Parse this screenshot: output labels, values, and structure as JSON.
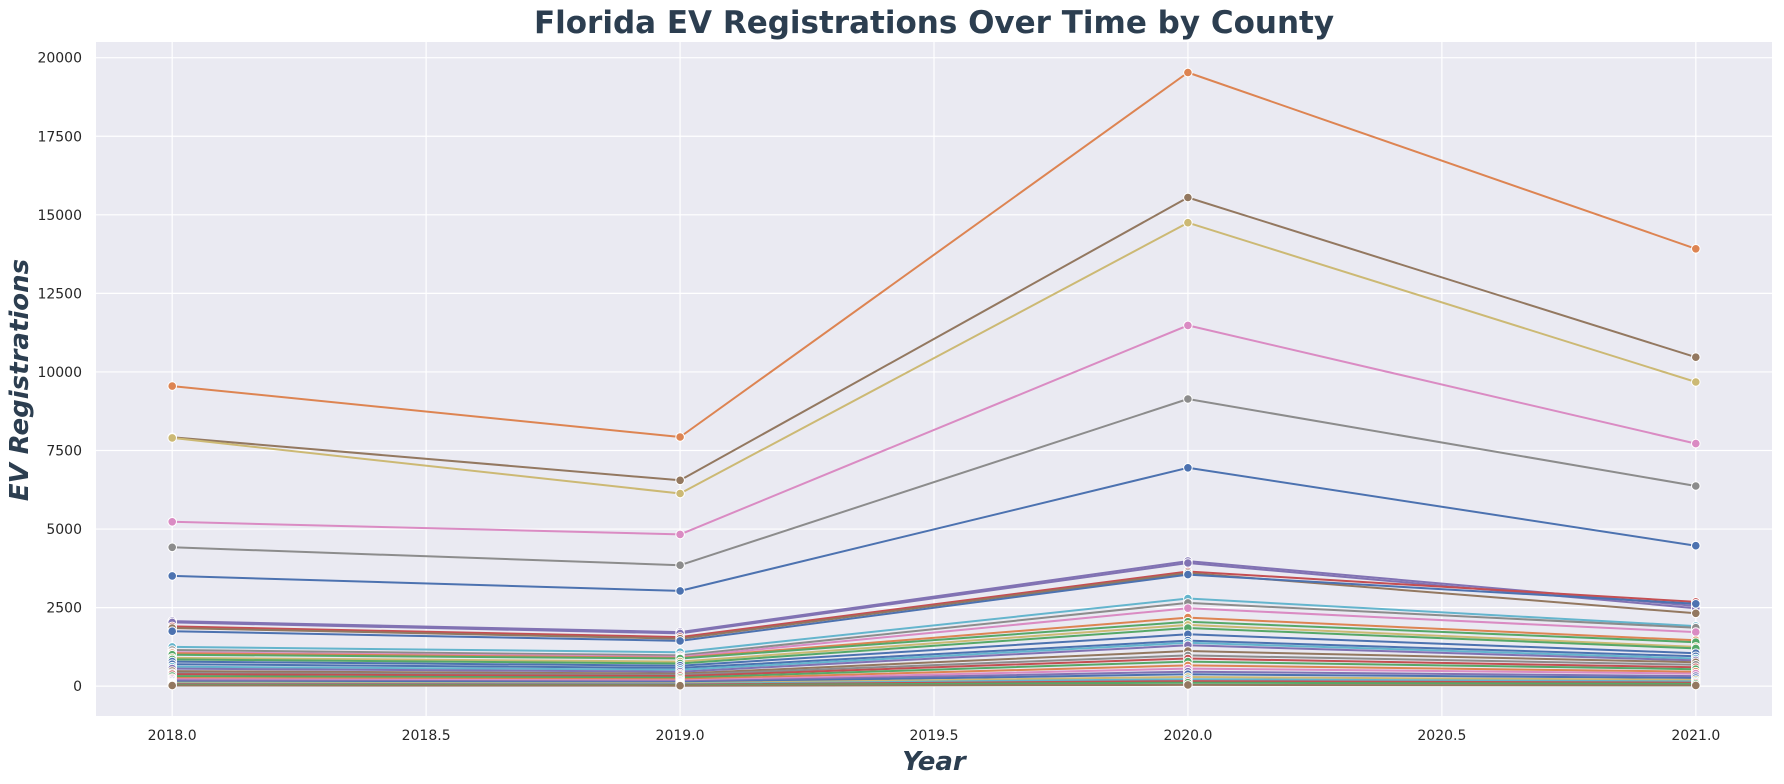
{
  "chart_data": {
    "type": "line",
    "title": "Florida EV Registrations Over Time by County",
    "xlabel": "Year",
    "ylabel": "EV Registrations",
    "x": [
      2018,
      2019,
      2020,
      2021
    ],
    "xlim": [
      2017.85,
      2021.15
    ],
    "ylim": [
      -950,
      20500
    ],
    "x_ticks": [
      2018.0,
      2018.5,
      2019.0,
      2019.5,
      2020.0,
      2020.5,
      2021.0
    ],
    "x_tick_labels": [
      "2018.0",
      "2018.5",
      "2019.0",
      "2019.5",
      "2020.0",
      "2020.5",
      "2021.0"
    ],
    "y_ticks": [
      0,
      2500,
      5000,
      7500,
      10000,
      12500,
      15000,
      17500,
      20000
    ],
    "y_tick_labels": [
      "0",
      "2500",
      "5000",
      "7500",
      "10000",
      "12500",
      "15000",
      "17500",
      "20000"
    ],
    "grid": true,
    "markers": true,
    "background": "#eaeaf2",
    "grid_color": "#ffffff",
    "series": [
      {
        "color": "#dd8452",
        "values": [
          9550,
          7930,
          19530,
          13920
        ]
      },
      {
        "color": "#937860",
        "values": [
          7920,
          6550,
          15550,
          10470
        ]
      },
      {
        "color": "#ccb974",
        "values": [
          7900,
          6130,
          14750,
          9680
        ]
      },
      {
        "color": "#da8bc3",
        "values": [
          5230,
          4830,
          11480,
          7720
        ]
      },
      {
        "color": "#8c8c8c",
        "values": [
          4420,
          3850,
          9140,
          6370
        ]
      },
      {
        "color": "#4c72b0",
        "values": [
          3510,
          3030,
          6950,
          4470
        ]
      },
      {
        "color": "#8172b3",
        "values": [
          2070,
          1720,
          3980,
          2550
        ]
      },
      {
        "color": "#8172b3",
        "values": [
          2030,
          1680,
          3920,
          2480
        ]
      },
      {
        "color": "#c44e52",
        "values": [
          1900,
          1560,
          3650,
          2680
        ]
      },
      {
        "color": "#937860",
        "values": [
          1850,
          1510,
          3600,
          2320
        ]
      },
      {
        "color": "#4c72b0",
        "values": [
          1750,
          1440,
          3550,
          2620
        ]
      },
      {
        "color": "#64b5cd",
        "values": [
          1250,
          1080,
          2790,
          1910
        ]
      },
      {
        "color": "#8c8c8c",
        "values": [
          1150,
          980,
          2650,
          1860
        ]
      },
      {
        "color": "#da8bc3",
        "values": [
          1080,
          930,
          2480,
          1720
        ]
      },
      {
        "color": "#dd8452",
        "values": [
          1050,
          900,
          2180,
          1460
        ]
      },
      {
        "color": "#55a868",
        "values": [
          1000,
          880,
          2050,
          1400
        ]
      },
      {
        "color": "#ccb974",
        "values": [
          900,
          780,
          1950,
          1250
        ]
      },
      {
        "color": "#55a868",
        "values": [
          850,
          720,
          1850,
          1200
        ]
      },
      {
        "color": "#4c72b0",
        "values": [
          780,
          650,
          1650,
          1050
        ]
      },
      {
        "color": "#4c72b0",
        "values": [
          700,
          580,
          1450,
          950
        ]
      },
      {
        "color": "#64b5cd",
        "values": [
          620,
          520,
          1380,
          880
        ]
      },
      {
        "color": "#8172b3",
        "values": [
          560,
          460,
          1300,
          820
        ]
      },
      {
        "color": "#937860",
        "values": [
          480,
          400,
          1120,
          760
        ]
      },
      {
        "color": "#8c8c8c",
        "values": [
          420,
          360,
          980,
          680
        ]
      },
      {
        "color": "#c44e52",
        "values": [
          380,
          320,
          880,
          600
        ]
      },
      {
        "color": "#55a868",
        "values": [
          320,
          270,
          780,
          540
        ]
      },
      {
        "color": "#dd8452",
        "values": [
          260,
          220,
          660,
          460
        ]
      },
      {
        "color": "#da8bc3",
        "values": [
          220,
          180,
          560,
          400
        ]
      },
      {
        "color": "#8172b3",
        "values": [
          180,
          150,
          460,
          320
        ]
      },
      {
        "color": "#4c72b0",
        "values": [
          140,
          120,
          380,
          260
        ]
      },
      {
        "color": "#ccb974",
        "values": [
          110,
          90,
          290,
          200
        ]
      },
      {
        "color": "#64b5cd",
        "values": [
          80,
          70,
          220,
          150
        ]
      },
      {
        "color": "#c44e52",
        "values": [
          60,
          50,
          160,
          110
        ]
      },
      {
        "color": "#55a868",
        "values": [
          40,
          30,
          110,
          70
        ]
      },
      {
        "color": "#937860",
        "values": [
          20,
          15,
          40,
          25
        ]
      }
    ]
  }
}
